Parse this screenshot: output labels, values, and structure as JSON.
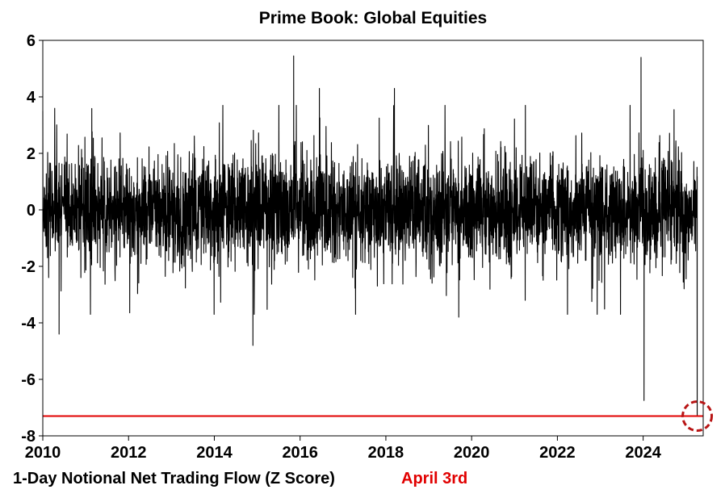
{
  "chart_data": {
    "type": "line",
    "title": "Prime Book: Global Equities",
    "xlabel": "1-Day Notional Net Trading Flow (Z Score)",
    "ylabel": "",
    "xlim": [
      2010,
      2025.4
    ],
    "ylim": [
      -8,
      6
    ],
    "x_ticks": [
      2010,
      2012,
      2014,
      2016,
      2018,
      2020,
      2022,
      2024
    ],
    "y_ticks": [
      6,
      4,
      2,
      0,
      -2,
      -4,
      -6,
      -8
    ],
    "x_tick_labels": [
      "2010",
      "2012",
      "2014",
      "2016",
      "2018",
      "2020",
      "2022",
      "2024"
    ],
    "y_tick_labels": [
      "6",
      "4",
      "2",
      "0",
      "-2",
      "-4",
      "-6",
      "-8"
    ],
    "grid": false,
    "series": [
      {
        "color": "#000000",
        "notable_points": [
          {
            "x": 2010.38,
            "y": -4.4
          },
          {
            "x": 2014.9,
            "y": -4.8
          },
          {
            "x": 2015.85,
            "y": 5.45
          },
          {
            "x": 2016.45,
            "y": 4.3
          },
          {
            "x": 2018.2,
            "y": 4.3
          },
          {
            "x": 2019.7,
            "y": -3.8
          },
          {
            "x": 2023.95,
            "y": 5.4
          },
          {
            "x": 2024.02,
            "y": -6.75
          },
          {
            "x": 2025.26,
            "y": -7.3
          }
        ]
      }
    ],
    "reference_line": {
      "y": -7.3,
      "color": "#e10000"
    },
    "annotation": {
      "text": "April 3rd",
      "color": "#e10000",
      "marker": "dashed-circle",
      "x": 2025.26,
      "y": -7.3
    }
  }
}
